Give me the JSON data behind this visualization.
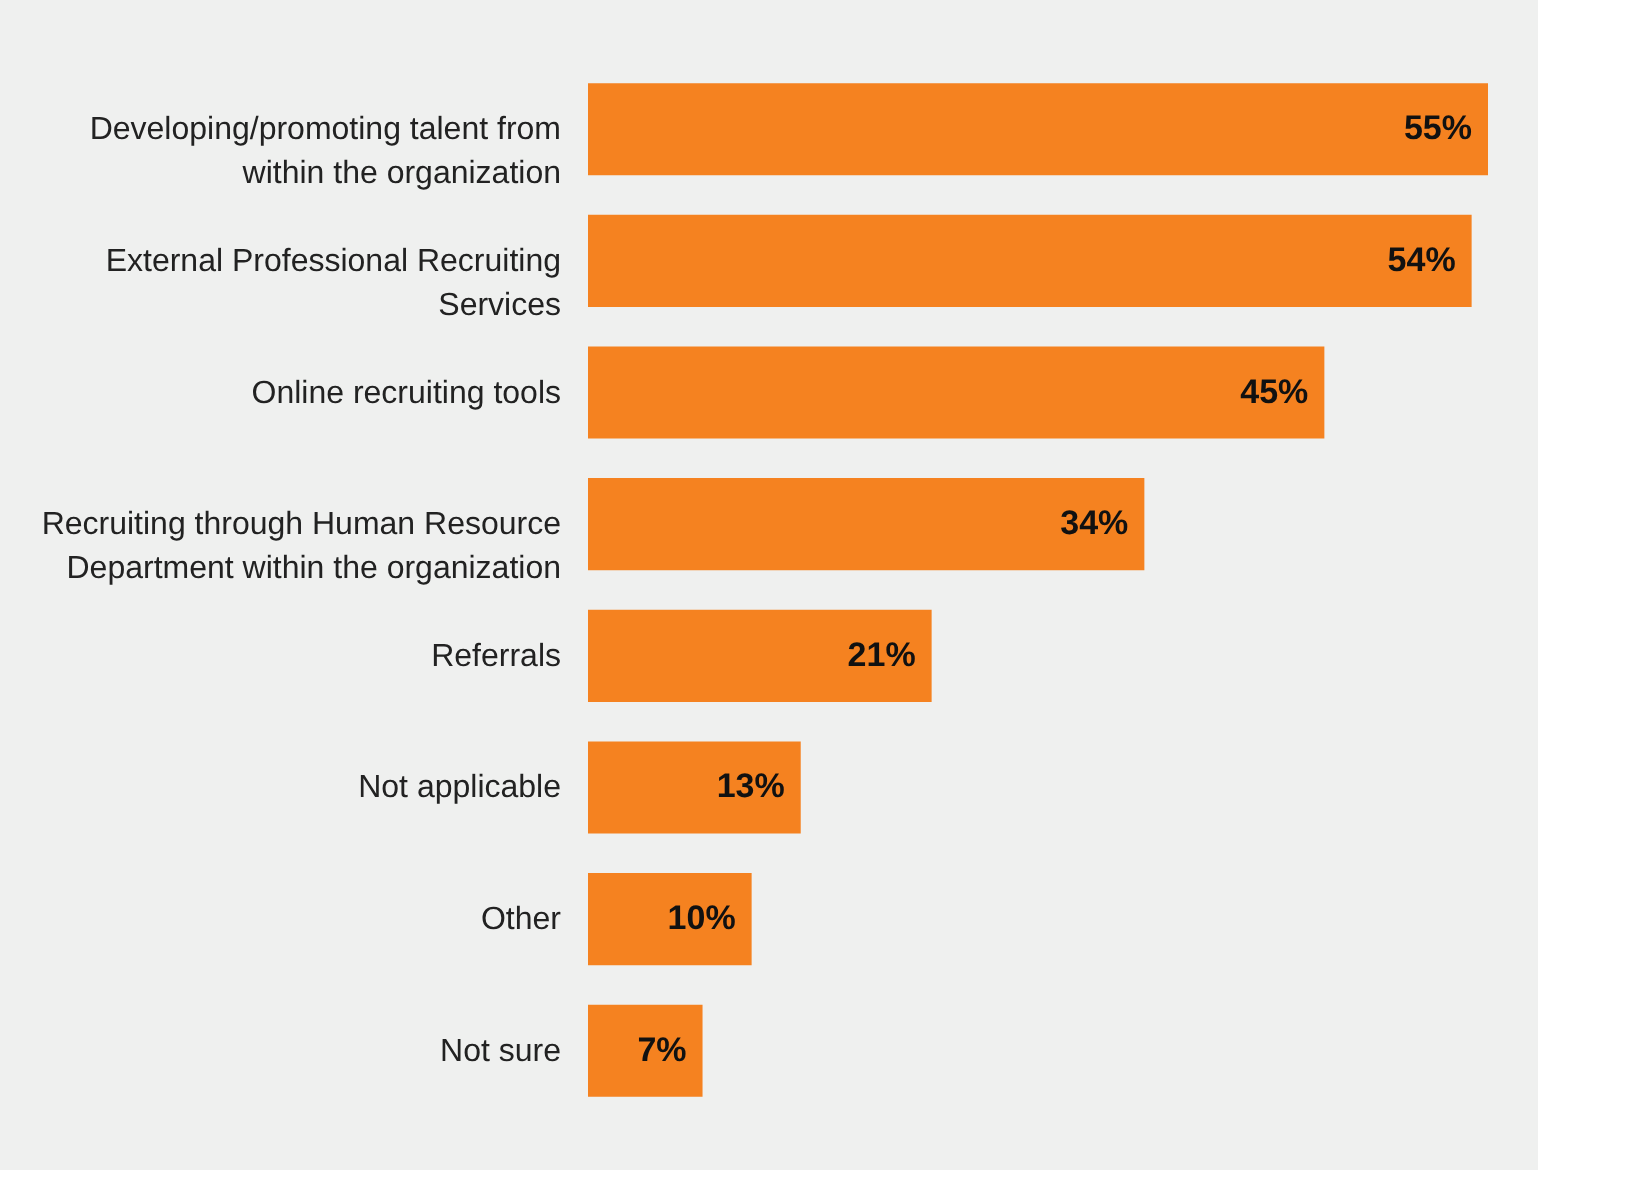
{
  "chart_data": {
    "type": "bar",
    "orientation": "horizontal",
    "grid": false,
    "tick_labels": "y",
    "categories": [
      "Developing/promoting talent from within the organization",
      "External Professional Recruiting Services",
      "Online recruiting tools",
      "Recruiting through Human Resource Department within the organization",
      "Referrals",
      "Not applicable",
      "Other",
      "Not sure"
    ],
    "series": [
      {
        "color": "#f58220",
        "values": [
          55,
          54,
          45,
          34,
          21,
          13,
          10,
          7
        ],
        "value_labels": [
          "55%",
          "54%",
          "45%",
          "34%",
          "21%",
          "13%",
          "10%",
          "7%"
        ]
      }
    ]
  }
}
